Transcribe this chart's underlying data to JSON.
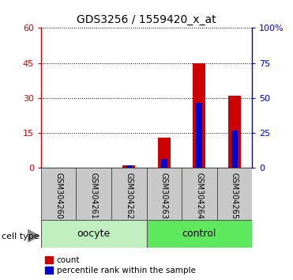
{
  "title": "GDS3256 / 1559420_x_at",
  "samples": [
    "GSM304260",
    "GSM304261",
    "GSM304262",
    "GSM304263",
    "GSM304264",
    "GSM304265"
  ],
  "red_values": [
    0,
    0,
    1,
    13,
    45,
    31
  ],
  "blue_values": [
    0,
    0,
    1,
    4,
    28,
    16
  ],
  "left_ylim": [
    0,
    60
  ],
  "left_yticks": [
    0,
    15,
    30,
    45,
    60
  ],
  "right_ylim": [
    0,
    100
  ],
  "right_yticks": [
    0,
    25,
    50,
    75,
    100
  ],
  "right_yticklabels": [
    "0",
    "25",
    "50",
    "75",
    "100%"
  ],
  "red_color": "#cc0000",
  "blue_color": "#0000cc",
  "red_bar_width": 0.35,
  "blue_bar_width": 0.18,
  "groups": [
    {
      "label": "oocyte",
      "indices": [
        0,
        1,
        2
      ],
      "color": "#c0f0c0"
    },
    {
      "label": "control",
      "indices": [
        3,
        4,
        5
      ],
      "color": "#5de85d"
    }
  ],
  "cell_type_label": "cell type",
  "legend_red": "count",
  "legend_blue": "percentile rank within the sample",
  "title_fontsize": 10,
  "axis_label_color_left": "#cc0000",
  "axis_label_color_right": "#0000cc",
  "grid_color": "#000000",
  "xticklabel_bg": "#c8c8c8"
}
